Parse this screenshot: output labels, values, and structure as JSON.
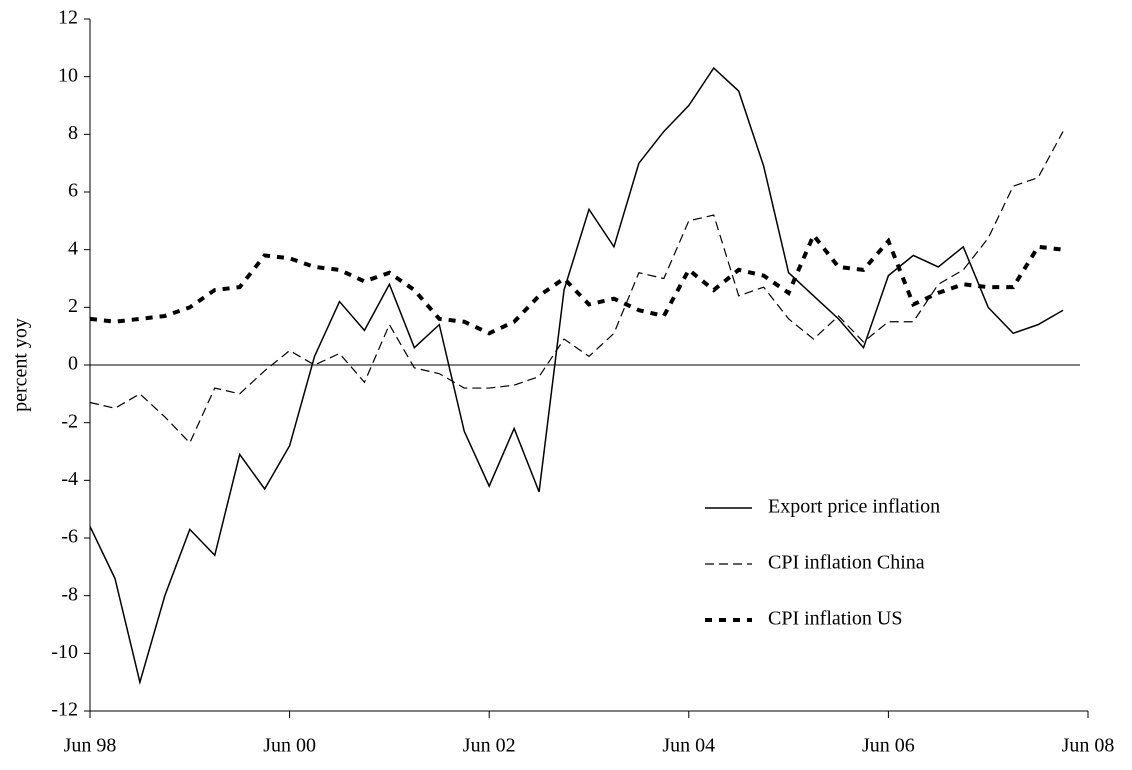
{
  "chart_data": {
    "type": "line",
    "y_label": "percent yoy",
    "categories": [
      "Jun 98",
      null,
      null,
      null,
      null,
      null,
      null,
      null,
      "Jun 00",
      null,
      null,
      null,
      null,
      null,
      null,
      null,
      "Jun 02",
      null,
      null,
      null,
      null,
      null,
      null,
      null,
      "Jun 04",
      null,
      null,
      null,
      null,
      null,
      null,
      null,
      "Jun 06",
      null,
      null,
      null,
      null,
      null,
      null,
      null,
      "Jun 08"
    ],
    "series": [
      {
        "name": "Export price inflation",
        "color": "#000000",
        "line_style": "solid",
        "values": [
          -5.6,
          -7.4,
          -11.0,
          -8.0,
          -5.7,
          -6.6,
          -3.1,
          -4.3,
          -2.8,
          0.3,
          2.2,
          1.2,
          2.8,
          0.6,
          1.4,
          -2.3,
          -4.2,
          -2.2,
          -4.4,
          2.6,
          5.4,
          4.1,
          7.0,
          8.1,
          9.0,
          10.3,
          9.5,
          6.9,
          3.2,
          2.4,
          1.6,
          0.6,
          3.1,
          3.8,
          3.4,
          4.1,
          2.0,
          1.1,
          1.4,
          1.9,
          null
        ]
      },
      {
        "name": "CPI inflation China",
        "color": "#000000",
        "line_style": "dashed",
        "values": [
          -1.3,
          -1.5,
          -1.0,
          -1.8,
          -2.7,
          -0.8,
          -1.0,
          -0.2,
          0.5,
          0.0,
          0.4,
          -0.6,
          1.4,
          -0.1,
          -0.3,
          -0.8,
          -0.8,
          -0.7,
          -0.4,
          0.9,
          0.3,
          1.1,
          3.2,
          3.0,
          5.0,
          5.2,
          2.4,
          2.7,
          1.6,
          0.9,
          1.7,
          0.8,
          1.5,
          1.5,
          2.8,
          3.3,
          4.4,
          6.2,
          6.5,
          8.1,
          null
        ]
      },
      {
        "name": "CPI inflation US",
        "color": "#000000",
        "line_style": "dotted",
        "values": [
          1.6,
          1.5,
          1.6,
          1.7,
          2.0,
          2.6,
          2.7,
          3.8,
          3.7,
          3.4,
          3.3,
          2.9,
          3.2,
          2.6,
          1.6,
          1.5,
          1.1,
          1.5,
          2.4,
          3.0,
          2.1,
          2.3,
          1.9,
          1.7,
          3.3,
          2.6,
          3.3,
          3.1,
          2.5,
          4.5,
          3.4,
          3.3,
          4.3,
          2.1,
          2.5,
          2.8,
          2.7,
          2.7,
          4.1,
          4.0,
          null
        ]
      }
    ],
    "ylim": [
      -12,
      12
    ],
    "yticks": [
      -12,
      -10,
      -8,
      -6,
      -4,
      -2,
      0,
      2,
      4,
      6,
      8,
      10,
      12
    ],
    "zero_line": true
  }
}
